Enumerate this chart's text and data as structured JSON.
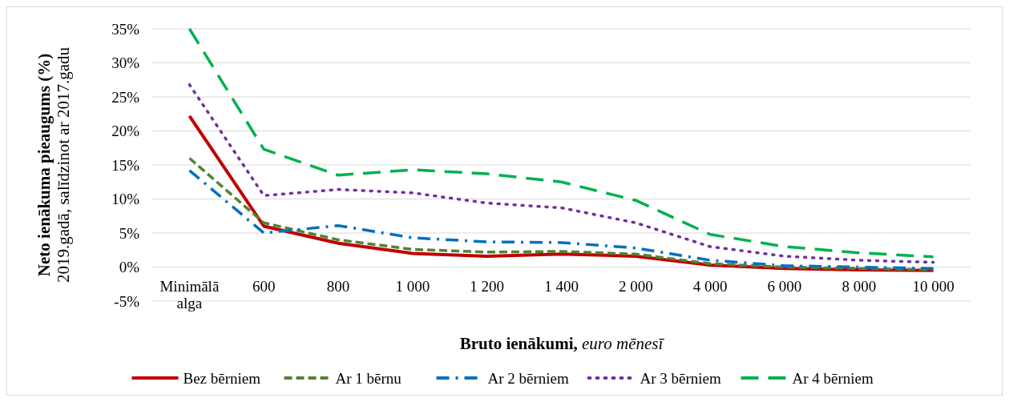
{
  "chart_data": {
    "type": "line",
    "xlabel": "Bruto ienākumi, euro mēnesī",
    "ylabel": "Neto ienākuma pieaugums (%)\n2019.gadā, salīdzinot ar 2017.gadu",
    "categories": [
      "Minimālā alga",
      "600",
      "800",
      "1 000",
      "1 200",
      "1 400",
      "2 000",
      "4 000",
      "6 000",
      "8 000",
      "10 000"
    ],
    "series": [
      {
        "name": "Bez bērniem",
        "color": "#c00000",
        "line_style": "solid",
        "values": [
          22.2,
          6.0,
          3.5,
          2.0,
          1.6,
          1.9,
          1.6,
          0.3,
          -0.2,
          -0.4,
          -0.5
        ]
      },
      {
        "name": "Ar 1 bērnu",
        "color": "#548235",
        "line_style": "dashed",
        "values": [
          16.0,
          6.5,
          4.0,
          2.6,
          2.2,
          2.3,
          1.9,
          0.5,
          0.0,
          -0.2,
          -0.4
        ]
      },
      {
        "name": "Ar 2 bērniem",
        "color": "#0070c0",
        "line_style": "dashdot",
        "values": [
          14.2,
          5.0,
          6.1,
          4.3,
          3.7,
          3.6,
          2.8,
          1.0,
          0.2,
          0.0,
          -0.2
        ]
      },
      {
        "name": "Ar 3 bērniem",
        "color": "#7030a0",
        "line_style": "dotted",
        "values": [
          26.8,
          10.5,
          11.4,
          10.9,
          9.4,
          8.7,
          6.5,
          3.0,
          1.6,
          1.0,
          0.7
        ]
      },
      {
        "name": "Ar 4 bērniem",
        "color": "#00b050",
        "line_style": "longdash",
        "values": [
          35.0,
          17.3,
          13.5,
          14.3,
          13.7,
          12.5,
          9.8,
          4.8,
          3.0,
          2.1,
          1.5
        ]
      }
    ],
    "ylim": [
      -5,
      35
    ],
    "yticks": [
      {
        "value": -5,
        "label": "-5%"
      },
      {
        "value": 0,
        "label": "0%"
      },
      {
        "value": 5,
        "label": "5%"
      },
      {
        "value": 10,
        "label": "10%"
      },
      {
        "value": 15,
        "label": "15%"
      },
      {
        "value": 20,
        "label": "20%"
      },
      {
        "value": 25,
        "label": "25%"
      },
      {
        "value": 30,
        "label": "30%"
      },
      {
        "value": 35,
        "label": "35%"
      }
    ],
    "grid": "y",
    "legend": "bottom",
    "marker": "none"
  }
}
